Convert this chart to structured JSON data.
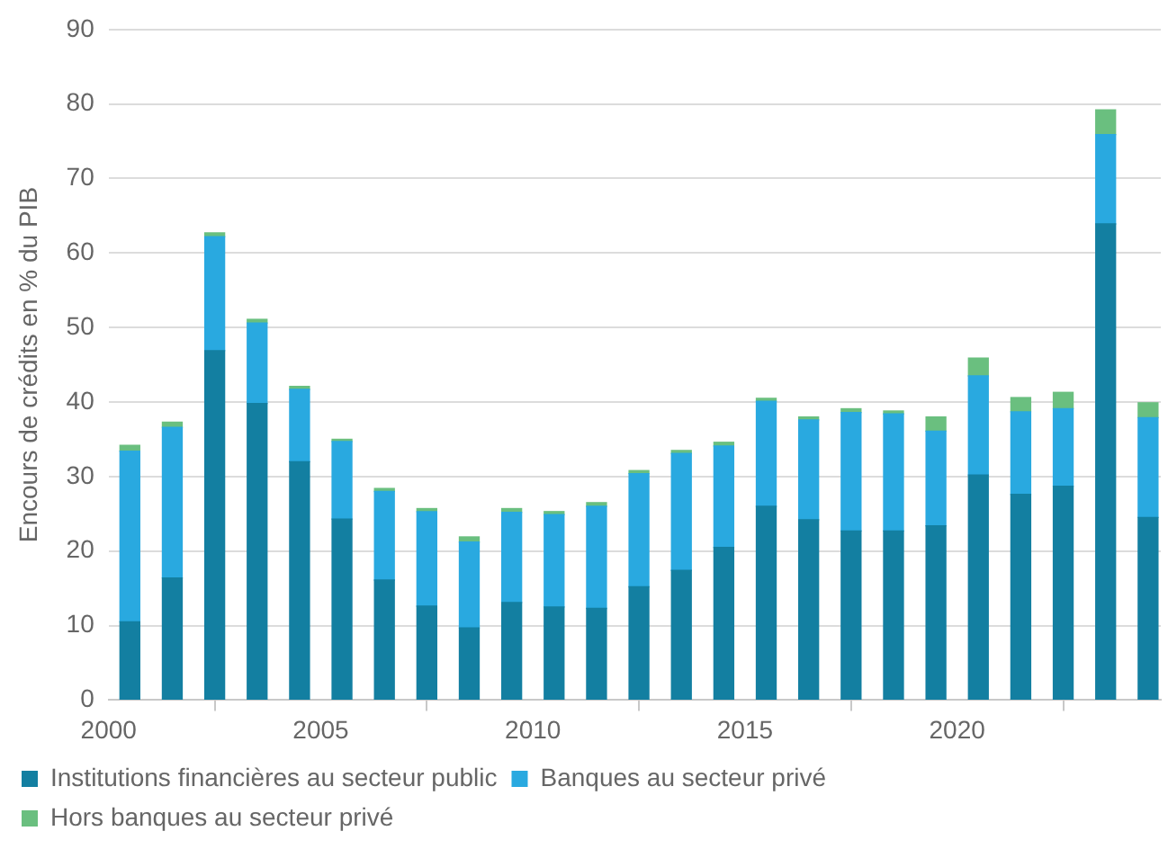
{
  "chart_data": {
    "type": "bar",
    "stacked": true,
    "ylabel": "Encours de crédits en % du PIB",
    "x": [
      2000.5,
      2001.5,
      2002.5,
      2003.5,
      2004.5,
      2005.5,
      2006.5,
      2007.5,
      2008.5,
      2009.5,
      2010.5,
      2011.5,
      2012.5,
      2013.5,
      2014.5,
      2015.5,
      2016.5,
      2017.5,
      2018.5,
      2019.5,
      2020.5,
      2021.5,
      2022.5,
      2023.5,
      2024.5
    ],
    "xlim": [
      2000,
      2024.8
    ],
    "xticks": [
      2000,
      2005,
      2010,
      2015,
      2020
    ],
    "ylim": [
      0,
      90
    ],
    "yticks": [
      0,
      10,
      20,
      30,
      40,
      50,
      60,
      70,
      80,
      90
    ],
    "grid": "y",
    "legend": "bottom",
    "series": [
      {
        "name": "Institutions financières au secteur public",
        "color": "#137fa1",
        "values": [
          10.5,
          16.4,
          46.9,
          39.8,
          32.0,
          24.3,
          16.1,
          12.6,
          9.7,
          13.1,
          12.5,
          12.3,
          15.2,
          17.4,
          20.5,
          26.0,
          24.2,
          22.7,
          22.7,
          23.4,
          30.2,
          27.6,
          28.7,
          63.9,
          24.5
        ]
      },
      {
        "name": "Banques au secteur privé",
        "color": "#29a9e0",
        "values": [
          22.9,
          20.2,
          15.3,
          10.8,
          9.7,
          10.4,
          11.9,
          12.7,
          11.5,
          12.1,
          12.4,
          13.7,
          15.2,
          15.7,
          13.6,
          14.1,
          13.4,
          15.9,
          15.7,
          12.7,
          13.3,
          11.1,
          10.4,
          12.0,
          13.4
        ]
      },
      {
        "name": "Hors banques au secteur privé",
        "color": "#6abf7f",
        "values": [
          0.8,
          0.7,
          0.5,
          0.5,
          0.4,
          0.3,
          0.4,
          0.4,
          0.7,
          0.5,
          0.4,
          0.5,
          0.4,
          0.4,
          0.5,
          0.4,
          0.4,
          0.5,
          0.4,
          1.9,
          2.4,
          1.9,
          2.2,
          3.3,
          2.0
        ]
      }
    ]
  }
}
